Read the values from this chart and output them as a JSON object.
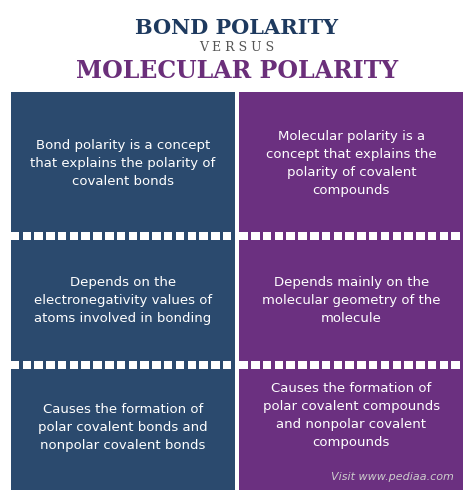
{
  "title1": "BOND POLARITY",
  "title1_color": "#1e3a5f",
  "versus": "V E R S U S",
  "versus_color": "#555555",
  "title2": "MOLECULAR POLARITY",
  "title2_color": "#6b2f7a",
  "bg_color": "#ffffff",
  "left_bg": "#2b4a6e",
  "right_bg": "#6b3080",
  "text_color": "#ffffff",
  "dot_color": "#ffffff",
  "cells": [
    [
      "Bond polarity is a concept\nthat explains the polarity of\ncovalent bonds",
      "Molecular polarity is a\nconcept that explains the\npolarity of covalent\ncompounds"
    ],
    [
      "Depends on the\nelectronegativity values of\natoms involved in bonding",
      "Depends mainly on the\nmolecular geometry of the\nmolecule"
    ],
    [
      "Causes the formation of\npolar covalent bonds and\nnonpolar covalent bonds",
      "Causes the formation of\npolar covalent compounds\nand nonpolar covalent\ncompounds"
    ]
  ],
  "footer": "Visit www.pediaa.com",
  "footer_color": "#cccccc",
  "title1_fontsize": 15,
  "versus_fontsize": 9,
  "title2_fontsize": 17,
  "cell_fontsize": 9.5,
  "footer_fontsize": 8
}
